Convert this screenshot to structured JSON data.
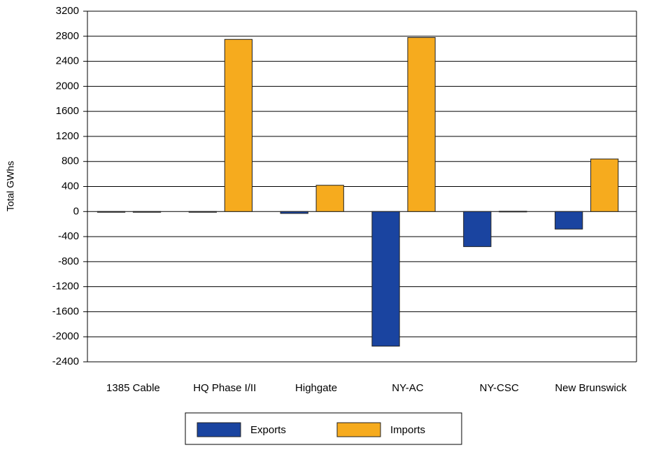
{
  "chart_data": {
    "type": "bar",
    "y_label": "Total GWhs",
    "categories": [
      "1385 Cable",
      "HQ Phase I/II",
      "Highgate",
      "NY-AC",
      "NY-CSC",
      "New Brunswick"
    ],
    "series": [
      {
        "name": "Exports",
        "color": "#1a44a0",
        "values": [
          0,
          -10,
          -30,
          -2150,
          -560,
          -280
        ]
      },
      {
        "name": "Imports",
        "color": "#f6ab1e",
        "values": [
          0,
          2750,
          420,
          2780,
          5,
          840
        ]
      }
    ],
    "ylim": [
      -2400,
      3200
    ],
    "yticks": [
      -2400,
      -2000,
      -1600,
      -1200,
      -800,
      -400,
      0,
      400,
      800,
      1200,
      1600,
      2000,
      2400,
      2800,
      3200
    ],
    "grid": true,
    "legend": "bottom"
  }
}
